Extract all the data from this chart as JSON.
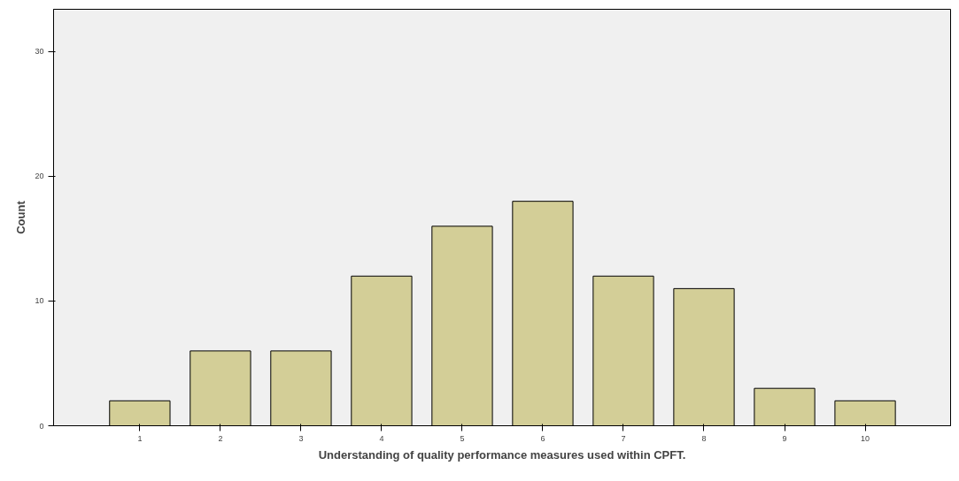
{
  "chart_data": {
    "type": "bar",
    "xlabel": "Understanding of quality performance measures used within CPFT.",
    "ylabel": "Count",
    "categories": [
      "1",
      "2",
      "3",
      "4",
      "5",
      "6",
      "7",
      "8",
      "9",
      "10"
    ],
    "values": [
      2,
      6,
      6,
      12,
      16,
      18,
      12,
      11,
      3,
      2
    ],
    "color": "#d3ce97",
    "ylim": [
      0,
      33.4
    ],
    "yticks": [
      0,
      10,
      20,
      30
    ],
    "grid": false
  }
}
